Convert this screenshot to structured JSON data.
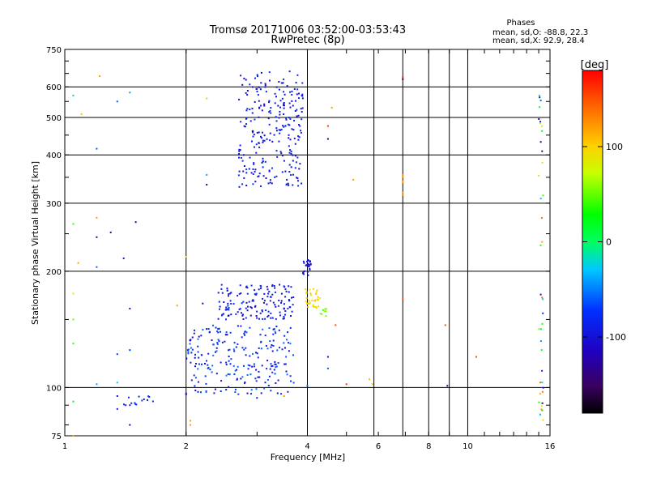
{
  "chart_data": {
    "type": "scatter",
    "title": "Tromsø 20171006 03:52:00-03:53:43",
    "subtitle": "RwPretec (8p)",
    "stats": {
      "heading": "Phases",
      "line_o": "mean, sd,O: -88.8, 22.3",
      "line_x": "mean, sd,X:  92.9, 28.4"
    },
    "xlabel": "Frequency [MHz]",
    "ylabel": "Stationary phase Virtual Height [km]",
    "x_scale": "log",
    "y_scale": "log",
    "xlim": [
      1,
      16
    ],
    "ylim": [
      75,
      750
    ],
    "xticks": [
      {
        "value": 1,
        "label": "1"
      },
      {
        "value": 2,
        "label": "2"
      },
      {
        "value": 4,
        "label": "4"
      },
      {
        "value": 6,
        "label": "6"
      },
      {
        "value": 8,
        "label": "8"
      },
      {
        "value": 10,
        "label": "10"
      },
      {
        "value": 16,
        "label": "16"
      }
    ],
    "yticks": [
      {
        "value": 75,
        "label": "75"
      },
      {
        "value": 100,
        "label": "100"
      },
      {
        "value": 200,
        "label": "200"
      },
      {
        "value": 300,
        "label": "300"
      },
      {
        "value": 400,
        "label": "400"
      },
      {
        "value": 500,
        "label": "500"
      },
      {
        "value": 600,
        "label": "600"
      },
      {
        "value": 750,
        "label": "750"
      }
    ],
    "grid_x": [
      2,
      4,
      5.85,
      8,
      10
    ],
    "grid_y": [
      100,
      200,
      300,
      400,
      500,
      600
    ],
    "extra_vlines": [
      6.9,
      9.0
    ],
    "colorbar": {
      "title": "[deg]",
      "range": [
        -180,
        180
      ],
      "ticks": [
        {
          "value": 100,
          "label": "100"
        },
        {
          "value": 0,
          "label": "0"
        },
        {
          "value": -100,
          "label": "-100"
        }
      ]
    },
    "grid": true,
    "series": [
      {
        "clusters": [
          {
            "x": [
              2.7,
              3.9
            ],
            "y": [
              330,
              660
            ],
            "phase": [
              -115,
              -70
            ],
            "count": 260
          },
          {
            "x": [
              2.0,
              3.7
            ],
            "y": [
              96,
              145
            ],
            "phase": [
              -110,
              -50
            ],
            "count": 230
          },
          {
            "x": [
              2.4,
              3.7
            ],
            "y": [
              150,
              185
            ],
            "phase": [
              -110,
              -70
            ],
            "count": 150
          },
          {
            "x": [
              3.9,
              4.1
            ],
            "y": [
              195,
              215
            ],
            "phase": [
              -110,
              -90
            ],
            "count": 25
          },
          {
            "x": [
              3.95,
              4.3
            ],
            "y": [
              160,
              180
            ],
            "phase": [
              80,
              110
            ],
            "count": 35
          },
          {
            "x": [
              4.3,
              4.5
            ],
            "y": [
              150,
              160
            ],
            "phase": [
              40,
              60
            ],
            "count": 8
          },
          {
            "x": [
              1.4,
              1.7
            ],
            "y": [
              90,
              95
            ],
            "phase": [
              -90,
              -70
            ],
            "count": 15
          },
          {
            "x": [
              6.9,
              6.9
            ],
            "y": [
              310,
              360
            ],
            "phase": [
              110,
              130
            ],
            "count": 8
          },
          {
            "x": [
              15.0,
              15.4
            ],
            "y": [
              80,
              610
            ],
            "phase": [
              -150,
              150
            ],
            "count": 40
          }
        ],
        "points": [
          {
            "x": 1.05,
            "y": 570,
            "phase": -20
          },
          {
            "x": 1.1,
            "y": 510,
            "phase": 110
          },
          {
            "x": 1.22,
            "y": 640,
            "phase": 120
          },
          {
            "x": 1.35,
            "y": 550,
            "phase": -60
          },
          {
            "x": 1.45,
            "y": 580,
            "phase": -40
          },
          {
            "x": 1.2,
            "y": 415,
            "phase": -60
          },
          {
            "x": 1.05,
            "y": 265,
            "phase": 40
          },
          {
            "x": 1.2,
            "y": 275,
            "phase": 120
          },
          {
            "x": 1.2,
            "y": 245,
            "phase": -140
          },
          {
            "x": 1.5,
            "y": 268,
            "phase": -150
          },
          {
            "x": 1.3,
            "y": 252,
            "phase": -130
          },
          {
            "x": 1.4,
            "y": 216,
            "phase": -100
          },
          {
            "x": 1.2,
            "y": 205,
            "phase": -60
          },
          {
            "x": 1.08,
            "y": 210,
            "phase": 120
          },
          {
            "x": 1.05,
            "y": 175,
            "phase": 80
          },
          {
            "x": 1.05,
            "y": 150,
            "phase": 50
          },
          {
            "x": 1.05,
            "y": 130,
            "phase": 40
          },
          {
            "x": 1.05,
            "y": 92,
            "phase": 20
          },
          {
            "x": 1.05,
            "y": 75,
            "phase": 120
          },
          {
            "x": 1.2,
            "y": 102,
            "phase": -40
          },
          {
            "x": 1.35,
            "y": 103,
            "phase": -30
          },
          {
            "x": 1.35,
            "y": 95,
            "phase": -100
          },
          {
            "x": 1.35,
            "y": 88,
            "phase": -80
          },
          {
            "x": 1.45,
            "y": 80,
            "phase": -110
          },
          {
            "x": 1.45,
            "y": 160,
            "phase": -100
          },
          {
            "x": 1.45,
            "y": 125,
            "phase": -70
          },
          {
            "x": 1.35,
            "y": 122,
            "phase": -70
          },
          {
            "x": 2.0,
            "y": 218,
            "phase": 100
          },
          {
            "x": 2.05,
            "y": 82,
            "phase": 120
          },
          {
            "x": 2.05,
            "y": 80,
            "phase": 120
          },
          {
            "x": 2.25,
            "y": 560,
            "phase": 60
          },
          {
            "x": 2.25,
            "y": 355,
            "phase": -40
          },
          {
            "x": 2.25,
            "y": 335,
            "phase": -140
          },
          {
            "x": 1.9,
            "y": 163,
            "phase": 120
          },
          {
            "x": 2.2,
            "y": 165,
            "phase": -110
          },
          {
            "x": 4.6,
            "y": 530,
            "phase": 120
          },
          {
            "x": 4.5,
            "y": 475,
            "phase": 160
          },
          {
            "x": 4.5,
            "y": 440,
            "phase": -140
          },
          {
            "x": 5.2,
            "y": 345,
            "phase": 120
          },
          {
            "x": 4.5,
            "y": 120,
            "phase": -100
          },
          {
            "x": 4.5,
            "y": 112,
            "phase": -60
          },
          {
            "x": 4.7,
            "y": 145,
            "phase": 150
          },
          {
            "x": 5.0,
            "y": 102,
            "phase": 160
          },
          {
            "x": 5.7,
            "y": 105,
            "phase": 110
          },
          {
            "x": 5.8,
            "y": 102,
            "phase": 110
          },
          {
            "x": 6.9,
            "y": 170,
            "phase": 150
          },
          {
            "x": 6.9,
            "y": 635,
            "phase": 170
          },
          {
            "x": 6.9,
            "y": 628,
            "phase": -160
          },
          {
            "x": 8.8,
            "y": 145,
            "phase": 150
          },
          {
            "x": 8.9,
            "y": 101,
            "phase": -120
          },
          {
            "x": 10.5,
            "y": 120,
            "phase": 150
          },
          {
            "x": 3.5,
            "y": 95,
            "phase": 120
          },
          {
            "x": 3.0,
            "y": 94,
            "phase": -100
          },
          {
            "x": 2.0,
            "y": 96,
            "phase": -100
          },
          {
            "x": 4.0,
            "y": 101,
            "phase": -60
          }
        ]
      }
    ]
  }
}
